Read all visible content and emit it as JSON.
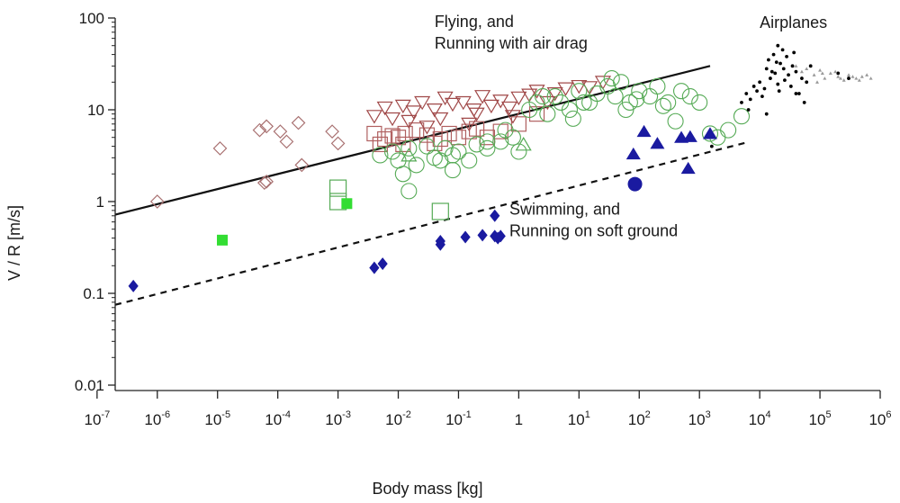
{
  "chart_data": {
    "type": "scatter",
    "title": "",
    "xlabel": "Body mass [kg]",
    "ylabel": "V / R [m/s]",
    "xscale": "log",
    "yscale": "log",
    "xlim": [
      2e-07,
      1000000.0
    ],
    "ylim": [
      0.01,
      100
    ],
    "x_ticks": [
      {
        "value": 1e-07,
        "base": "10",
        "exp": "-7"
      },
      {
        "value": 1e-06,
        "base": "10",
        "exp": "-6"
      },
      {
        "value": 1e-05,
        "base": "10",
        "exp": "-5"
      },
      {
        "value": 0.0001,
        "base": "10",
        "exp": "-4"
      },
      {
        "value": 0.001,
        "base": "10",
        "exp": "-3"
      },
      {
        "value": 0.01,
        "base": "10",
        "exp": "-2"
      },
      {
        "value": 0.1,
        "base": "10",
        "exp": "-1"
      },
      {
        "value": 1,
        "base": "1",
        "exp": ""
      },
      {
        "value": 10,
        "base": "10",
        "exp": "1"
      },
      {
        "value": 100,
        "base": "10",
        "exp": "2"
      },
      {
        "value": 1000,
        "base": "10",
        "exp": "3"
      },
      {
        "value": 10000.0,
        "base": "10",
        "exp": "4"
      },
      {
        "value": 100000.0,
        "base": "10",
        "exp": "5"
      },
      {
        "value": 1000000.0,
        "base": "10",
        "exp": "6"
      }
    ],
    "y_ticks": [
      {
        "value": 0.01,
        "label": "0.01"
      },
      {
        "value": 0.1,
        "label": "0.1"
      },
      {
        "value": 1,
        "label": "1"
      },
      {
        "value": 10,
        "label": "10"
      },
      {
        "value": 100,
        "label": "100"
      }
    ],
    "grid": false,
    "annotations": [
      {
        "lines": [
          "Flying, and",
          "Running with air drag"
        ],
        "x": 0.04,
        "y": 80
      },
      {
        "lines": [
          "Swimming, and",
          "Running on soft ground"
        ],
        "x": 0.7,
        "y": 0.72
      },
      {
        "lines": [
          "Airplanes"
        ],
        "x": 10000.0,
        "y": 78
      }
    ],
    "fit_lines": [
      {
        "name": "flying",
        "style": "solid",
        "x": [
          2e-07,
          1500.0
        ],
        "y": [
          0.72,
          30
        ]
      },
      {
        "name": "swimming",
        "style": "dashed",
        "x": [
          2e-07,
          6000.0
        ],
        "y": [
          0.075,
          4.4
        ]
      }
    ],
    "series": [
      {
        "marker": "diamond-open",
        "color": "#a87070",
        "x": [
          1e-06,
          1.1e-05,
          5e-05,
          6.5e-05,
          0.00011,
          0.00022,
          0.00014,
          0.00025,
          0.0008,
          0.001,
          6e-05,
          6.5e-05
        ],
        "y": [
          1.0,
          3.8,
          6.0,
          6.6,
          5.8,
          7.2,
          4.5,
          2.5,
          5.8,
          4.3,
          1.6,
          1.65
        ]
      },
      {
        "marker": "square-open",
        "color": "#b06060",
        "x": [
          0.004,
          0.006,
          0.008,
          0.01,
          0.013,
          0.02,
          0.03,
          0.05,
          0.07,
          0.1,
          0.15,
          0.2,
          0.3,
          0.5,
          1.0,
          2.0,
          0.005,
          0.012,
          0.04
        ],
        "y": [
          5.5,
          4.8,
          5.2,
          5.0,
          5.5,
          6.0,
          5.3,
          4.8,
          5.5,
          5.0,
          5.8,
          6.2,
          5.0,
          5.8,
          7.0,
          9.0,
          4.2,
          4.2,
          4.3
        ]
      },
      {
        "marker": "triangle-down-open",
        "color": "#a04848",
        "x": [
          0.004,
          0.006,
          0.008,
          0.012,
          0.018,
          0.025,
          0.04,
          0.06,
          0.08,
          0.12,
          0.18,
          0.25,
          0.35,
          0.5,
          0.7,
          1.0,
          1.5,
          2.0,
          3.0,
          4.0,
          6.0,
          10,
          15,
          25,
          0.015,
          0.05,
          0.2,
          0.8,
          0.03,
          0.15
        ],
        "y": [
          8.5,
          10.5,
          8.0,
          11.0,
          9.5,
          12.0,
          10.0,
          13.5,
          11.5,
          12.0,
          10.0,
          14.0,
          11.0,
          12.5,
          10.5,
          13.5,
          14.5,
          16.0,
          12.0,
          15.0,
          17.0,
          18.0,
          17.5,
          20.0,
          7.5,
          8.0,
          9.0,
          8.5,
          6.5,
          7.0
        ]
      },
      {
        "marker": "circle-open",
        "color": "#55aa55",
        "x": [
          0.005,
          0.008,
          0.01,
          0.015,
          0.02,
          0.03,
          0.04,
          0.06,
          0.08,
          0.1,
          0.15,
          0.2,
          0.3,
          0.5,
          0.8,
          1.0,
          1.5,
          2.0,
          3.0,
          4.0,
          5.0,
          7.0,
          10,
          15,
          20,
          30,
          40,
          50,
          70,
          100,
          150,
          200,
          300,
          500,
          700,
          1000.0,
          1500.0,
          2000.0,
          3000.0,
          5000.0,
          0.015,
          0.08,
          0.6,
          8,
          60,
          250,
          0.012,
          0.05,
          0.3,
          2.5,
          12,
          35,
          90,
          400
        ],
        "y": [
          3.2,
          3.5,
          2.8,
          3.8,
          2.5,
          4.0,
          3.0,
          3.8,
          3.2,
          3.5,
          2.8,
          4.2,
          3.8,
          4.5,
          5.0,
          3.5,
          10.0,
          12.0,
          9.0,
          14.0,
          12.0,
          10.0,
          16.0,
          12.0,
          15.0,
          18.0,
          14.0,
          20.0,
          12.0,
          16.0,
          14.0,
          18.0,
          12.0,
          16.0,
          14.0,
          12.0,
          5.5,
          5.0,
          6.0,
          8.5,
          1.3,
          2.2,
          6.0,
          8.0,
          10.0,
          11.0,
          2.0,
          2.8,
          4.5,
          14.0,
          12.0,
          22.0,
          13.0,
          7.5
        ]
      },
      {
        "marker": "triangle-up-open",
        "color": "#55aa55",
        "x": [
          0.015,
          1.2
        ],
        "y": [
          3.2,
          4.2
        ]
      },
      {
        "marker": "square-open-large",
        "color": "#55aa55",
        "x": [
          0.001,
          0.001,
          0.05
        ],
        "y": [
          1.4,
          1.0,
          0.78
        ]
      },
      {
        "marker": "square-filled",
        "color": "#33dd33",
        "x": [
          1.2e-05,
          0.0014
        ],
        "y": [
          0.38,
          0.95
        ]
      },
      {
        "marker": "diamond-filled",
        "color": "#1a1aa0",
        "x": [
          4e-07,
          0.004,
          0.0055,
          0.05,
          0.05,
          0.13,
          0.25,
          0.4,
          0.4,
          0.45,
          0.5
        ],
        "y": [
          0.12,
          0.19,
          0.21,
          0.34,
          0.37,
          0.41,
          0.43,
          0.7,
          0.42,
          0.4,
          0.42
        ]
      },
      {
        "marker": "circle-filled",
        "color": "#1a1aa0",
        "x": [
          85
        ],
        "y": [
          1.55
        ]
      },
      {
        "marker": "triangle-up-filled",
        "color": "#1a1aa0",
        "x": [
          80,
          120,
          200,
          500,
          700,
          650,
          1500.0
        ],
        "y": [
          3.3,
          5.8,
          4.3,
          5.0,
          5.1,
          2.3,
          5.5
        ]
      },
      {
        "marker": "dot",
        "color": "#000000",
        "x": [
          5000.0,
          6000.0,
          7000.0,
          8000.0,
          10000.0,
          12000.0,
          15000.0,
          18000.0,
          20000.0,
          25000.0,
          30000.0,
          35000.0,
          40000.0,
          50000.0,
          60000.0,
          14000.0,
          17000.0,
          22000.0,
          28000.0,
          33000.0,
          9000.0,
          11000.0,
          45000.0,
          55000.0,
          13000.0,
          19000.0,
          24000.0,
          6500.0,
          37000.0,
          16000.0,
          21000.0,
          26000.0,
          70000.0,
          200000.0,
          300000.0,
          40000.0,
          20000.0,
          1600.0,
          13000.0
        ],
        "y": [
          12,
          15,
          13,
          18,
          20,
          17,
          22,
          25,
          19,
          28,
          24,
          30,
          26,
          22,
          20,
          35,
          40,
          32,
          38,
          18,
          16,
          14,
          15,
          12,
          28,
          33,
          45,
          10,
          42,
          26,
          16,
          21,
          30,
          25,
          22,
          15,
          50,
          4.0,
          9.0
        ]
      },
      {
        "marker": "dot-small",
        "color": "#9a9a9a",
        "x": [
          40000.0,
          50000.0,
          60000.0,
          80000.0,
          100000.0,
          120000.0,
          150000.0,
          200000.0,
          250000.0,
          300000.0,
          400000.0,
          500000.0,
          600000.0,
          700000.0,
          90000.0,
          180000.0,
          350000.0,
          450000.0,
          220000.0,
          110000.0
        ],
        "y": [
          30,
          26,
          28,
          24,
          27,
          22,
          25,
          23,
          21,
          24,
          22,
          23,
          24,
          22,
          20,
          26,
          23,
          21,
          22,
          25
        ]
      }
    ]
  }
}
